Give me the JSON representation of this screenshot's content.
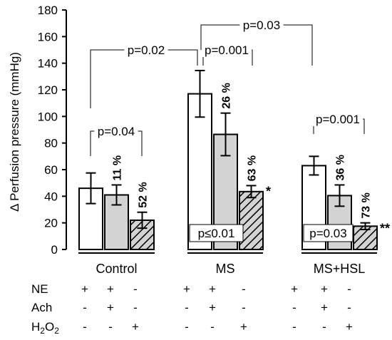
{
  "chart_data": {
    "type": "bar",
    "ylabel": "Δ Perfusion pressure (mmHg)",
    "ylim": [
      0,
      180
    ],
    "yticks": [
      "0",
      "20",
      "40",
      "60",
      "80",
      "100",
      "120",
      "140",
      "160",
      "180"
    ],
    "groups": [
      "Control",
      "MS",
      "MS+HSL"
    ],
    "series": [
      {
        "values": [
          46,
          117,
          63
        ],
        "errors": [
          11.5,
          17.5,
          7
        ],
        "fill": "#ffffff",
        "pattern": "none"
      },
      {
        "values": [
          41,
          86.5,
          40.5
        ],
        "errors": [
          7.5,
          16,
          8
        ],
        "fill": "#d3d3d3",
        "pattern": "none"
      },
      {
        "values": [
          22,
          43.5,
          17.5
        ],
        "errors": [
          6,
          4.5,
          2.5
        ],
        "fill": "#d3d3d3",
        "pattern": "hatch"
      }
    ],
    "percent_labels": [
      {
        "group": 0,
        "series": 1,
        "text": "11 %"
      },
      {
        "group": 0,
        "series": 2,
        "text": "52 %"
      },
      {
        "group": 1,
        "series": 1,
        "text": "26 %"
      },
      {
        "group": 1,
        "series": 2,
        "text": "63 %"
      },
      {
        "group": 2,
        "series": 1,
        "text": "36 %"
      },
      {
        "group": 2,
        "series": 2,
        "text": "73 %"
      }
    ],
    "star_labels": [
      {
        "group": 1,
        "text": "*"
      },
      {
        "group": 2,
        "text": "**"
      }
    ],
    "pvalue_boxes": [
      {
        "group": 1,
        "text": "p≤0.01"
      },
      {
        "group": 2,
        "text": "p=0.03"
      }
    ],
    "brackets": [
      {
        "text": "p=0.04"
      },
      {
        "text": "p=0.02"
      },
      {
        "text": "p=0.001"
      },
      {
        "text": "p=0.03"
      },
      {
        "text": "p=0.001"
      }
    ],
    "treatment_table": {
      "rows": [
        {
          "label": "NE",
          "values": [
            "+",
            "+",
            "-",
            "+",
            "+",
            "-",
            "+",
            "+",
            "-"
          ]
        },
        {
          "label": "Ach",
          "values": [
            "-",
            "+",
            "-",
            "-",
            "+",
            "-",
            "-",
            "+",
            "-"
          ]
        },
        {
          "label": "H",
          "label_sub": "2",
          "label_mid": "O",
          "label_sub2": "2",
          "values": [
            "-",
            "-",
            "+",
            "-",
            "-",
            "+",
            "-",
            "-",
            "+"
          ]
        }
      ]
    }
  }
}
